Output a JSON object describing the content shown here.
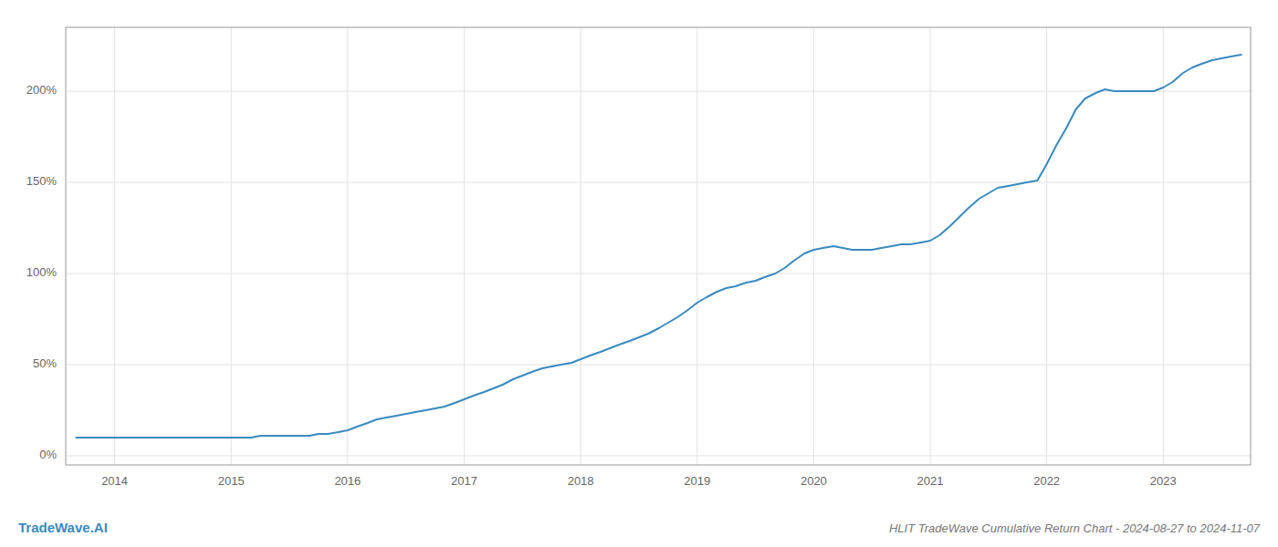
{
  "chart_data": {
    "type": "line",
    "title": "HLIT TradeWave Cumulative Return Chart - 2024-08-27 to 2024-11-07",
    "annotations": [
      "TradeWave.AI"
    ],
    "color": "#3a8abf",
    "grid": true,
    "xlim": [
      2013.58,
      2023.75
    ],
    "xticks": [
      2014,
      2015,
      2016,
      2017,
      2018,
      2019,
      2020,
      2021,
      2022,
      2023
    ],
    "ylim": [
      -5,
      235
    ],
    "yticks": [
      {
        "value": 0,
        "label": "0%"
      },
      {
        "value": 50,
        "label": "50%"
      },
      {
        "value": 100,
        "label": "100%"
      },
      {
        "value": 150,
        "label": "150%"
      },
      {
        "value": 200,
        "label": "200%"
      }
    ],
    "x": [
      2013.67,
      2013.75,
      2013.83,
      2013.92,
      2014.0,
      2014.08,
      2014.17,
      2014.25,
      2014.33,
      2014.42,
      2014.5,
      2014.58,
      2014.67,
      2014.75,
      2014.83,
      2014.92,
      2015.0,
      2015.08,
      2015.17,
      2015.25,
      2015.33,
      2015.42,
      2015.5,
      2015.58,
      2015.67,
      2015.75,
      2015.83,
      2015.92,
      2016.0,
      2016.08,
      2016.17,
      2016.25,
      2016.33,
      2016.42,
      2016.5,
      2016.58,
      2016.67,
      2016.75,
      2016.83,
      2016.92,
      2017.0,
      2017.08,
      2017.17,
      2017.25,
      2017.33,
      2017.42,
      2017.5,
      2017.58,
      2017.67,
      2017.75,
      2017.83,
      2017.92,
      2018.0,
      2018.08,
      2018.17,
      2018.25,
      2018.33,
      2018.42,
      2018.5,
      2018.58,
      2018.67,
      2018.75,
      2018.83,
      2018.92,
      2019.0,
      2019.08,
      2019.17,
      2019.25,
      2019.33,
      2019.42,
      2019.5,
      2019.58,
      2019.67,
      2019.75,
      2019.83,
      2019.92,
      2020.0,
      2020.08,
      2020.17,
      2020.25,
      2020.33,
      2020.42,
      2020.5,
      2020.58,
      2020.67,
      2020.75,
      2020.83,
      2020.92,
      2021.0,
      2021.08,
      2021.17,
      2021.25,
      2021.33,
      2021.42,
      2021.5,
      2021.58,
      2021.67,
      2021.75,
      2021.83,
      2021.92,
      2022.0,
      2022.08,
      2022.17,
      2022.25,
      2022.33,
      2022.42,
      2022.5,
      2022.58,
      2022.67,
      2022.75,
      2022.83,
      2022.92,
      2023.0,
      2023.08,
      2023.17,
      2023.25,
      2023.33,
      2023.42,
      2023.5,
      2023.58,
      2023.67
    ],
    "values": [
      10,
      10,
      10,
      10,
      10,
      10,
      10,
      10,
      10,
      10,
      10,
      10,
      10,
      10,
      10,
      10,
      10,
      10,
      10,
      11,
      11,
      11,
      11,
      11,
      11,
      12,
      12,
      13,
      14,
      16,
      18,
      20,
      21,
      22,
      23,
      24,
      25,
      26,
      27,
      29,
      31,
      33,
      35,
      37,
      39,
      42,
      44,
      46,
      48,
      49,
      50,
      51,
      53,
      55,
      57,
      59,
      61,
      63,
      65,
      67,
      70,
      73,
      76,
      80,
      84,
      87,
      90,
      92,
      93,
      95,
      96,
      98,
      100,
      103,
      107,
      111,
      113,
      114,
      115,
      114,
      113,
      113,
      113,
      114,
      115,
      116,
      116,
      117,
      118,
      121,
      126,
      131,
      136,
      141,
      144,
      147,
      148,
      149,
      150,
      151,
      160,
      170,
      180,
      190,
      196,
      199,
      201,
      200,
      200,
      200,
      200,
      200,
      202,
      205,
      210,
      213,
      215,
      217,
      218,
      219,
      220
    ]
  }
}
